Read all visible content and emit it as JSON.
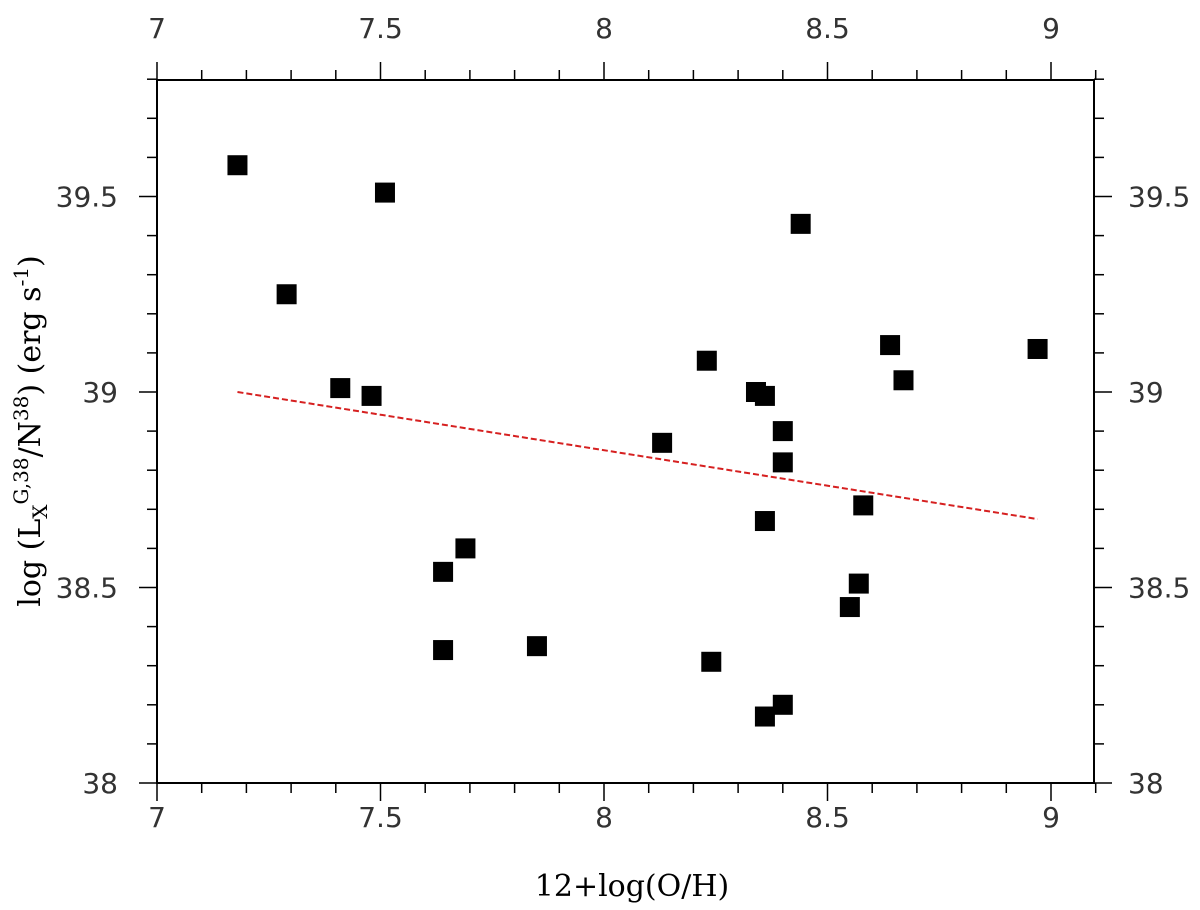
{
  "chart_data": {
    "type": "scatter",
    "title": "",
    "xlabel": "12+log(O/H)",
    "ylabel": {
      "prefix": "log (L",
      "sub": "X",
      "sup1": "G,38",
      "mid": "/N",
      "sup2": "38",
      "suffix": ") (erg s",
      "sup3": "-1",
      "end": ")"
    },
    "xlim": [
      7.0,
      9.1
    ],
    "ylim": [
      38.0,
      39.8
    ],
    "xticks": [
      7,
      7.5,
      8,
      8.5,
      9
    ],
    "xtick_labels": [
      "7",
      "7.5",
      "8",
      "8.5",
      "9"
    ],
    "yticks": [
      38,
      38.5,
      39,
      39.5
    ],
    "ytick_labels": [
      "38",
      "38.5",
      "39",
      "39.5"
    ],
    "points": [
      {
        "x": 7.18,
        "y": 39.58
      },
      {
        "x": 7.29,
        "y": 39.25
      },
      {
        "x": 7.41,
        "y": 39.01
      },
      {
        "x": 7.48,
        "y": 38.99
      },
      {
        "x": 7.51,
        "y": 39.51
      },
      {
        "x": 7.64,
        "y": 38.54
      },
      {
        "x": 7.64,
        "y": 38.34
      },
      {
        "x": 7.69,
        "y": 38.6
      },
      {
        "x": 7.85,
        "y": 38.35
      },
      {
        "x": 8.13,
        "y": 38.87
      },
      {
        "x": 8.23,
        "y": 39.08
      },
      {
        "x": 8.24,
        "y": 38.31
      },
      {
        "x": 8.34,
        "y": 39.0
      },
      {
        "x": 8.36,
        "y": 38.99
      },
      {
        "x": 8.36,
        "y": 38.67
      },
      {
        "x": 8.36,
        "y": 38.17
      },
      {
        "x": 8.4,
        "y": 38.9
      },
      {
        "x": 8.4,
        "y": 38.82
      },
      {
        "x": 8.4,
        "y": 38.2
      },
      {
        "x": 8.44,
        "y": 39.43
      },
      {
        "x": 8.55,
        "y": 38.45
      },
      {
        "x": 8.57,
        "y": 38.51
      },
      {
        "x": 8.58,
        "y": 38.71
      },
      {
        "x": 8.64,
        "y": 39.12
      },
      {
        "x": 8.67,
        "y": 39.03
      },
      {
        "x": 8.97,
        "y": 39.11
      }
    ],
    "fit_line": {
      "x": [
        7.18,
        8.97
      ],
      "y": [
        39.0,
        38.675
      ]
    },
    "marker_color": "#000000",
    "fit_color": "#d62020",
    "grid": false,
    "legend": "none"
  }
}
